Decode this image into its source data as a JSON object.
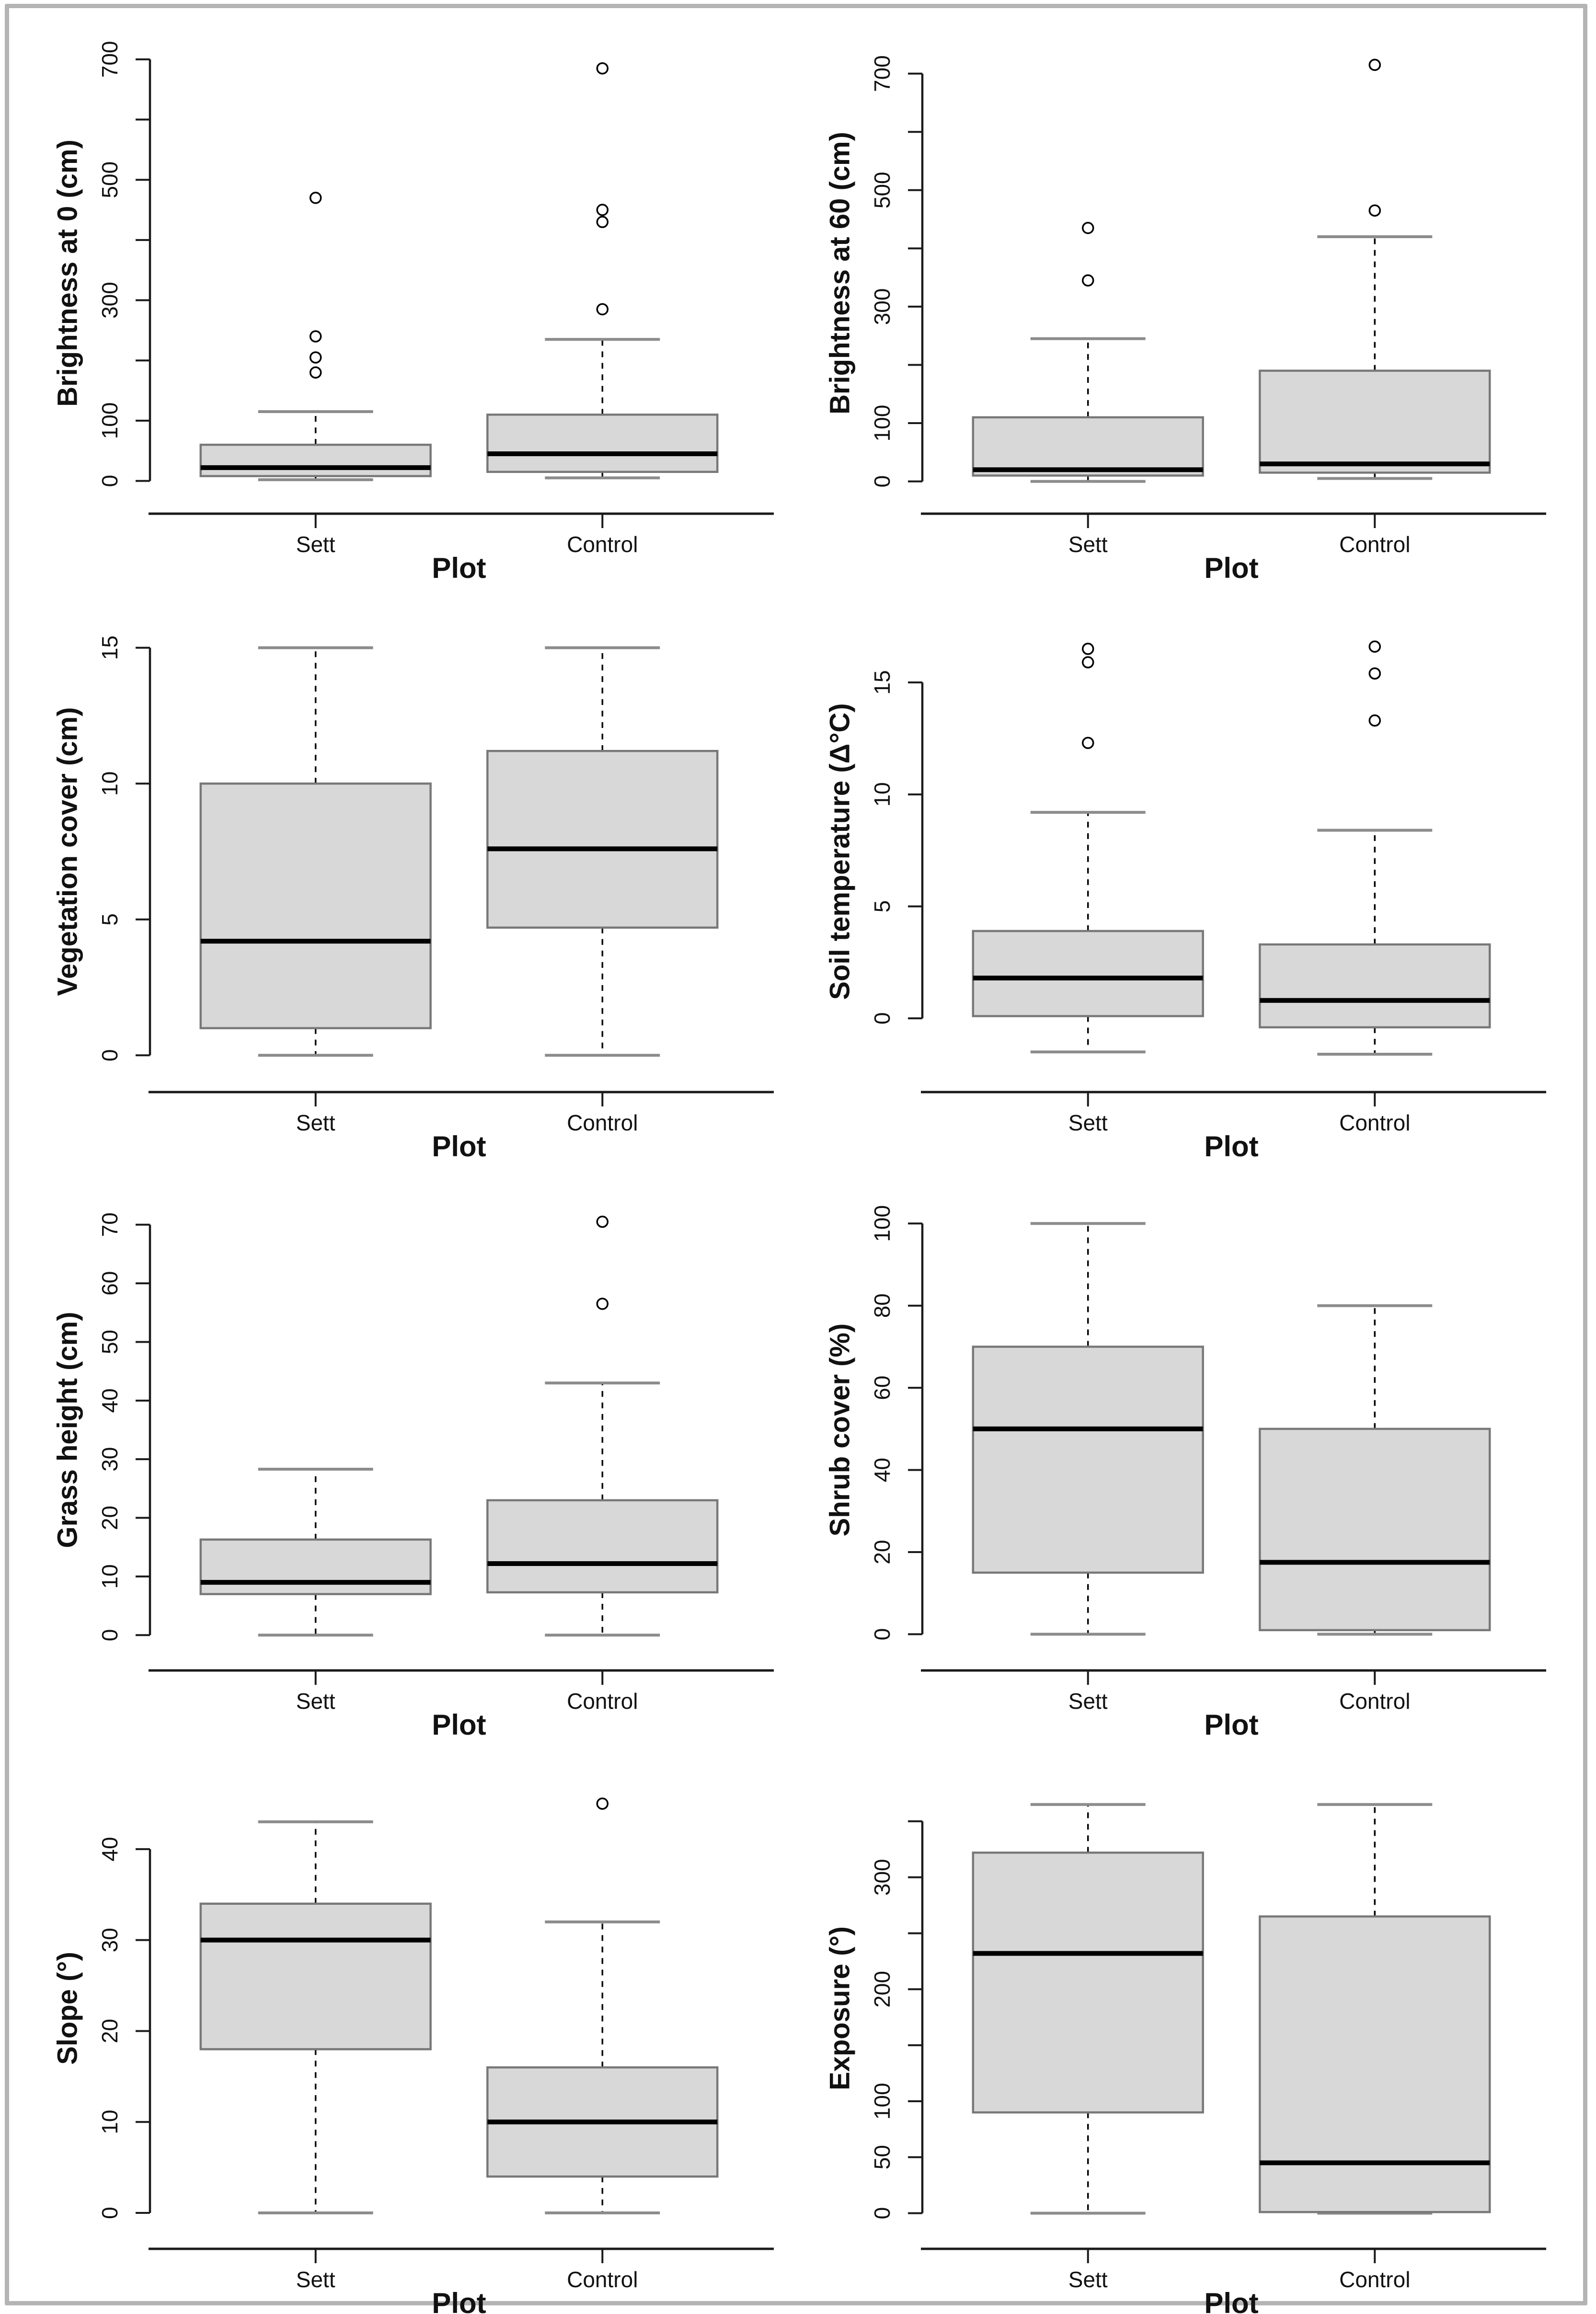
{
  "figure": {
    "description": "Grid of eight base-R style boxplots comparing Sett vs Control plots for habitat variables",
    "frame_border_color": "#b4b4b4",
    "background": "#ffffff",
    "columns": 2,
    "rows": 4
  },
  "shared": {
    "xlabel": "Plot",
    "categories": [
      "Sett",
      "Control"
    ]
  },
  "style": {
    "box_fill": "#d8d8d8",
    "box_border": "#787878",
    "median_color": "#000000",
    "whisker_color": "#000000",
    "cap_color": "#8c8c8c",
    "axis_color": "#1a1a1a",
    "outlier_color": "#000000"
  },
  "chart_data": [
    {
      "type": "boxplot",
      "panel_id": "brightness-at-0",
      "ylabel": "Brightness at 0 (cm)",
      "xlabel": "Plot",
      "categories": [
        "Sett",
        "Control"
      ],
      "ylim": [
        -25,
        715
      ],
      "yticks": [
        {
          "v": 0,
          "label": "0"
        },
        {
          "v": 100,
          "label": "100"
        },
        {
          "v": 200,
          "label": ""
        },
        {
          "v": 300,
          "label": "300"
        },
        {
          "v": 400,
          "label": ""
        },
        {
          "v": 500,
          "label": "500"
        },
        {
          "v": 600,
          "label": ""
        },
        {
          "v": 700,
          "label": "700"
        }
      ],
      "series": [
        {
          "name": "Sett",
          "q1": 8,
          "median": 22,
          "q3": 60,
          "whisker_low": 2,
          "whisker_high": 115,
          "outliers": [
            180,
            205,
            240,
            470
          ]
        },
        {
          "name": "Control",
          "q1": 15,
          "median": 45,
          "q3": 110,
          "whisker_low": 5,
          "whisker_high": 235,
          "outliers": [
            285,
            430,
            450,
            685
          ]
        }
      ]
    },
    {
      "type": "boxplot",
      "panel_id": "brightness-at-60",
      "ylabel": "Brightness at 60 (cm)",
      "xlabel": "Plot",
      "categories": [
        "Sett",
        "Control"
      ],
      "ylim": [
        -25,
        740
      ],
      "yticks": [
        {
          "v": 0,
          "label": "0"
        },
        {
          "v": 100,
          "label": "100"
        },
        {
          "v": 200,
          "label": ""
        },
        {
          "v": 300,
          "label": "300"
        },
        {
          "v": 400,
          "label": ""
        },
        {
          "v": 500,
          "label": "500"
        },
        {
          "v": 600,
          "label": ""
        },
        {
          "v": 700,
          "label": "700"
        }
      ],
      "series": [
        {
          "name": "Sett",
          "q1": 10,
          "median": 20,
          "q3": 110,
          "whisker_low": 0,
          "whisker_high": 245,
          "outliers": [
            345,
            435
          ]
        },
        {
          "name": "Control",
          "q1": 15,
          "median": 30,
          "q3": 190,
          "whisker_low": 5,
          "whisker_high": 420,
          "outliers": [
            465,
            715
          ]
        }
      ]
    },
    {
      "type": "boxplot",
      "panel_id": "vegetation-cover",
      "ylabel": "Vegetation cover (cm)",
      "xlabel": "Plot",
      "categories": [
        "Sett",
        "Control"
      ],
      "ylim": [
        -0.7,
        15.7
      ],
      "yticks": [
        {
          "v": 0,
          "label": "0"
        },
        {
          "v": 5,
          "label": "5"
        },
        {
          "v": 10,
          "label": "10"
        },
        {
          "v": 15,
          "label": "15"
        }
      ],
      "series": [
        {
          "name": "Sett",
          "q1": 1.0,
          "median": 4.2,
          "q3": 10.0,
          "whisker_low": 0,
          "whisker_high": 15,
          "outliers": []
        },
        {
          "name": "Control",
          "q1": 4.7,
          "median": 7.6,
          "q3": 11.2,
          "whisker_low": 0,
          "whisker_high": 15,
          "outliers": []
        }
      ]
    },
    {
      "type": "boxplot",
      "panel_id": "soil-temperature",
      "ylabel": "Soil temperature (Δ°C)",
      "xlabel": "Plot",
      "categories": [
        "Sett",
        "Control"
      ],
      "ylim": [
        -2.5,
        17.4
      ],
      "yticks": [
        {
          "v": 0,
          "label": "0"
        },
        {
          "v": 5,
          "label": "5"
        },
        {
          "v": 10,
          "label": "10"
        },
        {
          "v": 15,
          "label": "15"
        }
      ],
      "series": [
        {
          "name": "Sett",
          "q1": 0.1,
          "median": 1.8,
          "q3": 3.9,
          "whisker_low": -1.5,
          "whisker_high": 9.2,
          "outliers": [
            12.3,
            15.9,
            16.5
          ]
        },
        {
          "name": "Control",
          "q1": -0.4,
          "median": 0.8,
          "q3": 3.3,
          "whisker_low": -1.6,
          "whisker_high": 8.4,
          "outliers": [
            13.3,
            15.4,
            16.6
          ]
        }
      ]
    },
    {
      "type": "boxplot",
      "panel_id": "grass-height",
      "ylabel": "Grass height (cm)",
      "xlabel": "Plot",
      "categories": [
        "Sett",
        "Control"
      ],
      "ylim": [
        -3,
        73
      ],
      "yticks": [
        {
          "v": 0,
          "label": "0"
        },
        {
          "v": 10,
          "label": "10"
        },
        {
          "v": 20,
          "label": "20"
        },
        {
          "v": 30,
          "label": "30"
        },
        {
          "v": 40,
          "label": "40"
        },
        {
          "v": 50,
          "label": "50"
        },
        {
          "v": 60,
          "label": "60"
        },
        {
          "v": 70,
          "label": "70"
        }
      ],
      "series": [
        {
          "name": "Sett",
          "q1": 7.0,
          "median": 9.0,
          "q3": 16.3,
          "whisker_low": 0,
          "whisker_high": 28.3,
          "outliers": []
        },
        {
          "name": "Control",
          "q1": 7.3,
          "median": 12.2,
          "q3": 23.0,
          "whisker_low": 0,
          "whisker_high": 43.0,
          "outliers": [
            56.5,
            70.5
          ]
        }
      ]
    },
    {
      "type": "boxplot",
      "panel_id": "shrub-cover",
      "ylabel": "Shrub cover (%)",
      "xlabel": "Plot",
      "categories": [
        "Sett",
        "Control"
      ],
      "ylim": [
        -4.5,
        104
      ],
      "yticks": [
        {
          "v": 0,
          "label": "0"
        },
        {
          "v": 20,
          "label": "20"
        },
        {
          "v": 40,
          "label": "40"
        },
        {
          "v": 60,
          "label": "60"
        },
        {
          "v": 80,
          "label": "80"
        },
        {
          "v": 100,
          "label": "100"
        }
      ],
      "series": [
        {
          "name": "Sett",
          "q1": 15,
          "median": 50,
          "q3": 70,
          "whisker_low": 0,
          "whisker_high": 100,
          "outliers": []
        },
        {
          "name": "Control",
          "q1": 1,
          "median": 17.5,
          "q3": 50,
          "whisker_low": 0,
          "whisker_high": 80,
          "outliers": []
        }
      ]
    },
    {
      "type": "boxplot",
      "panel_id": "slope",
      "ylabel": "Slope (°)",
      "xlabel": "Plot",
      "categories": [
        "Sett",
        "Control"
      ],
      "ylim": [
        -2,
        47
      ],
      "yticks": [
        {
          "v": 0,
          "label": "0"
        },
        {
          "v": 10,
          "label": "10"
        },
        {
          "v": 20,
          "label": "20"
        },
        {
          "v": 30,
          "label": "30"
        },
        {
          "v": 40,
          "label": "40"
        }
      ],
      "series": [
        {
          "name": "Sett",
          "q1": 18,
          "median": 30,
          "q3": 34,
          "whisker_low": 0,
          "whisker_high": 43,
          "outliers": []
        },
        {
          "name": "Control",
          "q1": 4,
          "median": 10,
          "q3": 16,
          "whisker_low": 0,
          "whisker_high": 32,
          "outliers": [
            45
          ]
        }
      ]
    },
    {
      "type": "boxplot",
      "panel_id": "exposure",
      "ylabel": "Exposure (°)",
      "xlabel": "Plot",
      "categories": [
        "Sett",
        "Control"
      ],
      "ylim": [
        -16,
        382
      ],
      "yticks": [
        {
          "v": 0,
          "label": "0"
        },
        {
          "v": 50,
          "label": "50"
        },
        {
          "v": 100,
          "label": "100"
        },
        {
          "v": 150,
          "label": ""
        },
        {
          "v": 200,
          "label": "200"
        },
        {
          "v": 250,
          "label": ""
        },
        {
          "v": 300,
          "label": "300"
        },
        {
          "v": 350,
          "label": ""
        }
      ],
      "series": [
        {
          "name": "Sett",
          "q1": 90,
          "median": 232,
          "q3": 322,
          "whisker_low": 0,
          "whisker_high": 365,
          "outliers": []
        },
        {
          "name": "Control",
          "q1": 1,
          "median": 45,
          "q3": 265,
          "whisker_low": 0,
          "whisker_high": 365,
          "outliers": []
        }
      ]
    }
  ]
}
